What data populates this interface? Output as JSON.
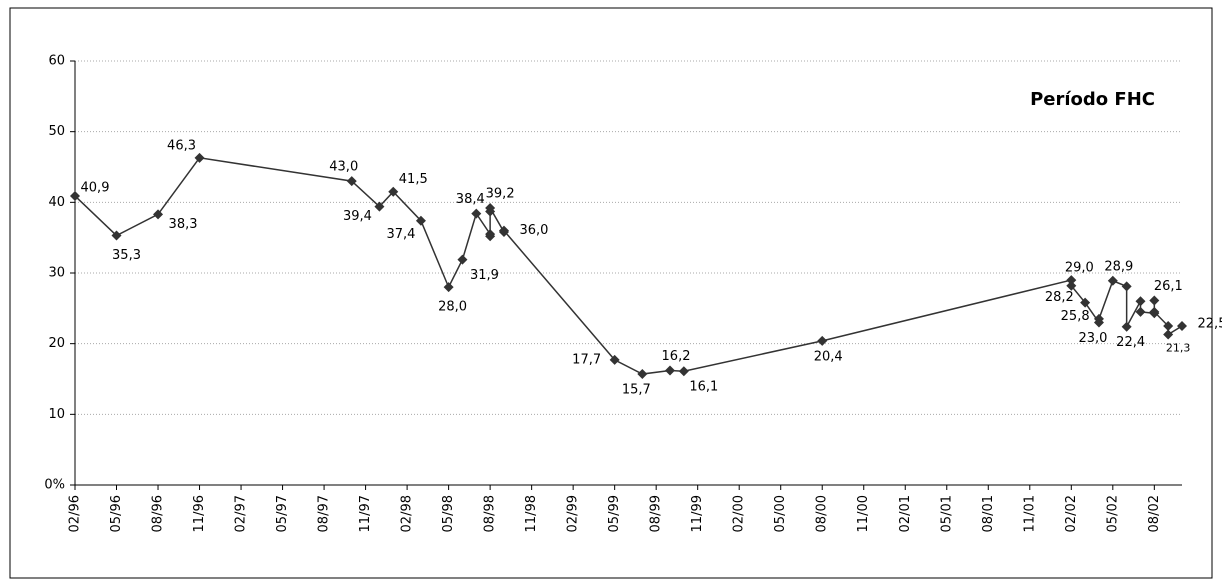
{
  "chart_data": {
    "type": "line",
    "title": "Período FHC",
    "x": [
      "02/96",
      "05/96",
      "08/96",
      "11/96",
      "10/97",
      "12/97",
      "01/98",
      "03/98",
      "05/98",
      "06/98",
      "07/98",
      "08/98",
      "08/98",
      "08/98",
      "08/98",
      "09/98",
      "09/98",
      "05/99",
      "07/99",
      "09/99",
      "10/99",
      "08/00",
      "02/02",
      "02/02",
      "03/02",
      "04/02",
      "04/02",
      "05/02",
      "06/02",
      "06/02",
      "07/02",
      "07/02",
      "08/02",
      "08/02",
      "08/02",
      "09/02",
      "09/02",
      "10/02"
    ],
    "values": [
      40.9,
      35.3,
      38.3,
      46.3,
      43.0,
      39.4,
      41.5,
      37.4,
      28.0,
      31.9,
      38.4,
      35.5,
      35.2,
      38.7,
      39.2,
      35.8,
      36.0,
      17.7,
      15.7,
      16.2,
      16.1,
      20.4,
      29.0,
      28.2,
      25.8,
      23.0,
      23.5,
      28.9,
      28.1,
      22.4,
      26.0,
      24.5,
      24.3,
      26.1,
      24.5,
      22.5,
      21.3,
      22.5
    ],
    "value_labels": [
      "40,9",
      "35,3",
      "38,3",
      "46,3",
      "43,0",
      "39,4",
      "41,5",
      "37,4",
      "28,0",
      "31,9",
      "38,4",
      null,
      null,
      null,
      "39,2",
      null,
      "36,0",
      "17,7",
      "15,7",
      "16,2",
      "16,1",
      "20,4",
      "29,0",
      "28,2",
      "25,8",
      "23,0",
      null,
      "28,9",
      null,
      "22,4",
      null,
      null,
      null,
      "26,1",
      null,
      null,
      "21,3",
      "22,5"
    ],
    "color": "#333333",
    "xlim": [
      "02/96",
      "10/02"
    ],
    "xticks": [
      "02/96",
      "05/96",
      "08/96",
      "11/96",
      "02/97",
      "05/97",
      "08/97",
      "11/97",
      "02/98",
      "05/98",
      "08/98",
      "11/98",
      "02/99",
      "05/99",
      "08/99",
      "11/99",
      "02/00",
      "05/00",
      "08/00",
      "11/00",
      "02/01",
      "05/01",
      "08/01",
      "11/01",
      "02/02",
      "05/02",
      "08/02"
    ],
    "ylim": [
      0,
      60
    ],
    "yticks": [
      {
        "value": 0,
        "label": "0%"
      },
      10,
      20,
      30,
      40,
      50,
      60
    ],
    "grid": true
  }
}
